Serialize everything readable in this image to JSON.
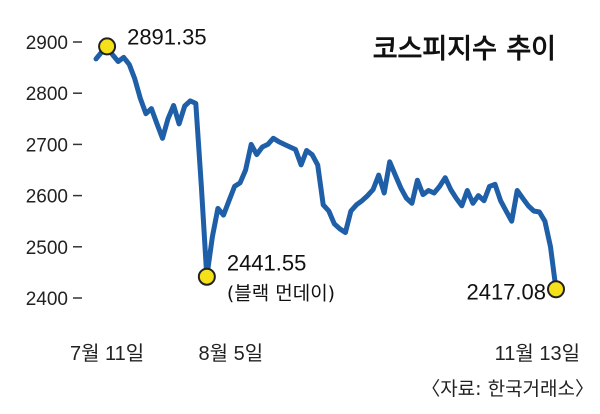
{
  "chart_data": {
    "type": "line",
    "title": "코스피지수 추이",
    "source": "〈자료: 한국거래소〉",
    "ylim": [
      2400,
      2900
    ],
    "yticks": [
      2400,
      2500,
      2600,
      2700,
      2800,
      2900
    ],
    "xtick_labels": [
      "7월 11일",
      "8월 5일",
      "11월 13일"
    ],
    "grid": false,
    "line_color": "#1f5fa8",
    "marker_color": "#f5e11a",
    "series": [
      {
        "values": [
          2867,
          2880,
          2891.35,
          2875,
          2862,
          2870,
          2856,
          2828,
          2790,
          2760,
          2770,
          2740,
          2712,
          2750,
          2776,
          2740,
          2775,
          2785,
          2780,
          2620,
          2441.55,
          2520,
          2575,
          2562,
          2590,
          2618,
          2625,
          2650,
          2700,
          2680,
          2695,
          2700,
          2712,
          2705,
          2700,
          2695,
          2690,
          2660,
          2688,
          2680,
          2660,
          2582,
          2570,
          2545,
          2535,
          2528,
          2570,
          2582,
          2590,
          2600,
          2612,
          2640,
          2605,
          2666,
          2640,
          2615,
          2595,
          2585,
          2630,
          2602,
          2610,
          2605,
          2618,
          2635,
          2612,
          2595,
          2580,
          2610,
          2585,
          2600,
          2590,
          2618,
          2622,
          2590,
          2570,
          2550,
          2610,
          2595,
          2580,
          2570,
          2568,
          2550,
          2500,
          2417.08
        ]
      }
    ],
    "annotations": [
      {
        "label": "2891.35"
      },
      {
        "label": "2441.55",
        "sublabel": "(블랙 먼데이)"
      },
      {
        "label": "2417.08"
      }
    ]
  }
}
